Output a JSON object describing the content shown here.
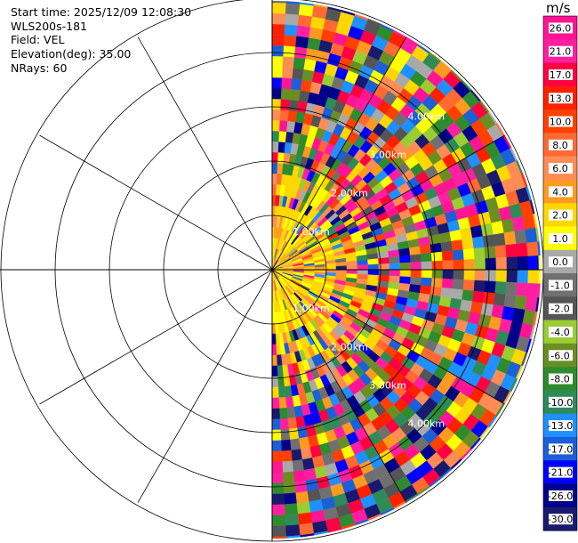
{
  "header": {
    "start_time": "Start time: 2025/12/09 12:08:30",
    "instrument": "WLS200s-181",
    "field": "Field: VEL",
    "elevation": "Elevation(deg): 35.00",
    "nrays": "NRays: 60"
  },
  "colorbar": {
    "unit": "m/s",
    "ticks": [
      "26.0",
      "21.0",
      "17.0",
      "13.0",
      "10.0",
      "8.0",
      "6.0",
      "4.0",
      "2.0",
      "1.0",
      "0.0",
      "-1.0",
      "-2.0",
      "-4.0",
      "-6.0",
      "-8.0",
      "-10.0",
      "-13.0",
      "-17.0",
      "-21.0",
      "-26.0",
      "-30.0"
    ],
    "colors": [
      "#ff1493",
      "#ff1fa0",
      "#ff0040",
      "#ff2000",
      "#ff4000",
      "#ff6a33",
      "#ff8c55",
      "#ff9a20",
      "#ffd700",
      "#ffff00",
      "#a9a9a9",
      "#707070",
      "#555555",
      "#9acd32",
      "#6b8e23",
      "#2e8b2e",
      "#2e8b57",
      "#1e90ff",
      "#1c5fd6",
      "#0000ff",
      "#00008b",
      "#191970"
    ]
  },
  "chart_data": {
    "type": "polar-ppi",
    "field": "VEL",
    "unit": "m/s",
    "range_rings_km": [
      "1.00km",
      "2.00km",
      "3.00km",
      "4.00km"
    ],
    "sector": "eastern half (0°–180° azimuth)",
    "nrays": 60,
    "value_range": [
      -30.0,
      26.0
    ],
    "near_range_dominant": "yellow/orange (about 2–6 m/s)",
    "far_range": "mixed noisy values spanning full scale"
  }
}
